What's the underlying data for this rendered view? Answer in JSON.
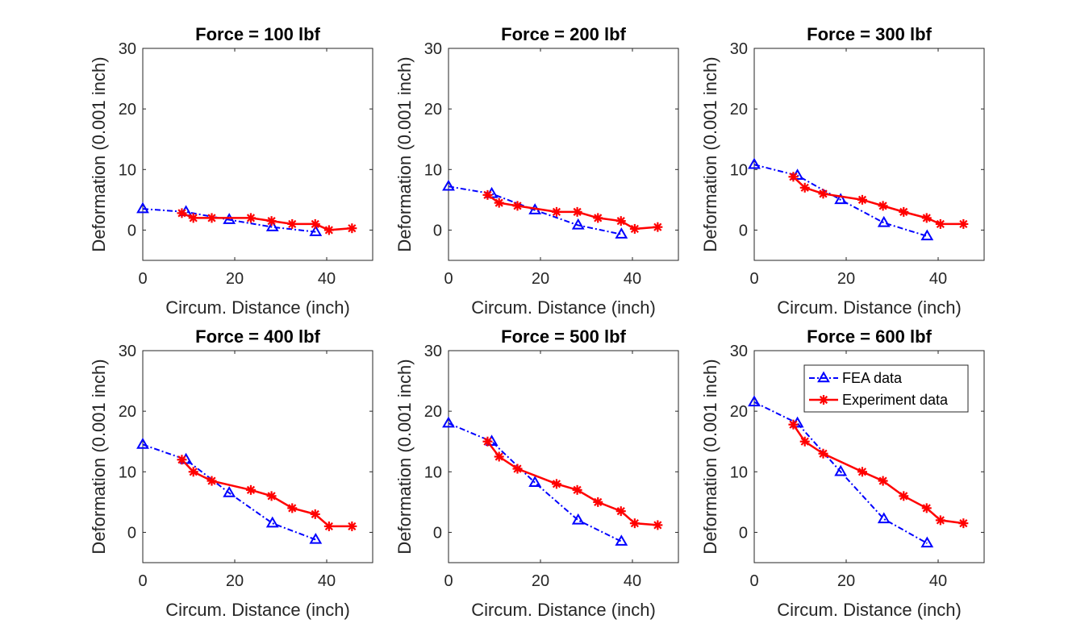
{
  "figure": {
    "legend": {
      "location": "top-right",
      "panel_index": 5,
      "entries": [
        "FEA data",
        "Experiment data"
      ]
    }
  },
  "colors": {
    "fea": "#0000ff",
    "experiment": "#ff0000",
    "axis": "#262626",
    "background": "#ffffff"
  },
  "chart_data": [
    {
      "type": "line",
      "title": "Force = 100 lbf",
      "xlabel": "Circum. Distance (inch)",
      "ylabel": "Deformation (0.001 inch)",
      "xlim": [
        0,
        50
      ],
      "ylim": [
        -5,
        30
      ],
      "xticks": [
        0,
        20,
        40
      ],
      "yticks": [
        0,
        10,
        20,
        30
      ],
      "series": [
        {
          "name": "FEA data",
          "x": [
            0,
            9.4,
            18.8,
            28.2,
            37.6
          ],
          "y": [
            3.5,
            3.0,
            1.7,
            0.5,
            -0.3
          ]
        },
        {
          "name": "Experiment data",
          "x": [
            8.5,
            11,
            15,
            23.5,
            28,
            32.5,
            37.5,
            40.5,
            45.5
          ],
          "y": [
            2.8,
            2.0,
            2.0,
            2.0,
            1.5,
            1.0,
            1.0,
            0.0,
            0.3
          ]
        }
      ]
    },
    {
      "type": "line",
      "title": "Force = 200 lbf",
      "xlabel": "Circum. Distance (inch)",
      "ylabel": "Deformation (0.001 inch)",
      "xlim": [
        0,
        50
      ],
      "ylim": [
        -5,
        30
      ],
      "xticks": [
        0,
        20,
        40
      ],
      "yticks": [
        0,
        10,
        20,
        30
      ],
      "series": [
        {
          "name": "FEA data",
          "x": [
            0,
            9.4,
            18.8,
            28.2,
            37.6
          ],
          "y": [
            7.2,
            6.0,
            3.3,
            0.8,
            -0.7
          ]
        },
        {
          "name": "Experiment data",
          "x": [
            8.5,
            11,
            15,
            23.5,
            28,
            32.5,
            37.5,
            40.5,
            45.5
          ],
          "y": [
            5.8,
            4.5,
            4.0,
            3.0,
            3.0,
            2.0,
            1.5,
            0.2,
            0.5
          ]
        }
      ]
    },
    {
      "type": "line",
      "title": "Force = 300 lbf",
      "xlabel": "Circum. Distance (inch)",
      "ylabel": "Deformation (0.001 inch)",
      "xlim": [
        0,
        50
      ],
      "ylim": [
        -5,
        30
      ],
      "xticks": [
        0,
        20,
        40
      ],
      "yticks": [
        0,
        10,
        20,
        30
      ],
      "series": [
        {
          "name": "FEA data",
          "x": [
            0,
            9.4,
            18.8,
            28.2,
            37.6
          ],
          "y": [
            10.8,
            9.0,
            5.0,
            1.2,
            -1.0
          ]
        },
        {
          "name": "Experiment data",
          "x": [
            8.5,
            11,
            15,
            23.5,
            28,
            32.5,
            37.5,
            40.5,
            45.5
          ],
          "y": [
            8.8,
            7.0,
            6.0,
            5.0,
            4.0,
            3.0,
            2.0,
            1.0,
            1.0
          ]
        }
      ]
    },
    {
      "type": "line",
      "title": "Force = 400 lbf",
      "xlabel": "Circum. Distance (inch)",
      "ylabel": "Deformation (0.001 inch)",
      "xlim": [
        0,
        50
      ],
      "ylim": [
        -5,
        30
      ],
      "xticks": [
        0,
        20,
        40
      ],
      "yticks": [
        0,
        10,
        20,
        30
      ],
      "series": [
        {
          "name": "FEA data",
          "x": [
            0,
            9.4,
            18.8,
            28.2,
            37.6
          ],
          "y": [
            14.5,
            12.0,
            6.5,
            1.5,
            -1.2
          ]
        },
        {
          "name": "Experiment data",
          "x": [
            8.5,
            11,
            15,
            23.5,
            28,
            32.5,
            37.5,
            40.5,
            45.5
          ],
          "y": [
            12.0,
            10.0,
            8.5,
            7.0,
            6.0,
            4.0,
            3.0,
            1.0,
            1.0
          ]
        }
      ]
    },
    {
      "type": "line",
      "title": "Force = 500 lbf",
      "xlabel": "Circum. Distance (inch)",
      "ylabel": "Deformation (0.001 inch)",
      "xlim": [
        0,
        50
      ],
      "ylim": [
        -5,
        30
      ],
      "xticks": [
        0,
        20,
        40
      ],
      "yticks": [
        0,
        10,
        20,
        30
      ],
      "series": [
        {
          "name": "FEA data",
          "x": [
            0,
            9.4,
            18.8,
            28.2,
            37.6
          ],
          "y": [
            18.0,
            15.0,
            8.2,
            2.0,
            -1.5
          ]
        },
        {
          "name": "Experiment data",
          "x": [
            8.5,
            11,
            15,
            23.5,
            28,
            32.5,
            37.5,
            40.5,
            45.5
          ],
          "y": [
            15.0,
            12.5,
            10.5,
            8.0,
            7.0,
            5.0,
            3.5,
            1.5,
            1.2
          ]
        }
      ]
    },
    {
      "type": "line",
      "title": "Force = 600 lbf",
      "xlabel": "Circum. Distance (inch)",
      "ylabel": "Deformation (0.001 inch)",
      "xlim": [
        0,
        50
      ],
      "ylim": [
        -5,
        30
      ],
      "xticks": [
        0,
        20,
        40
      ],
      "yticks": [
        0,
        10,
        20,
        30
      ],
      "series": [
        {
          "name": "FEA data",
          "x": [
            0,
            9.4,
            18.8,
            28.2,
            37.6
          ],
          "y": [
            21.5,
            18.0,
            10.0,
            2.2,
            -1.8
          ]
        },
        {
          "name": "Experiment data",
          "x": [
            8.5,
            11,
            15,
            23.5,
            28,
            32.5,
            37.5,
            40.5,
            45.5
          ],
          "y": [
            17.8,
            15.0,
            13.0,
            10.0,
            8.5,
            6.0,
            4.0,
            2.0,
            1.5
          ]
        }
      ]
    }
  ]
}
